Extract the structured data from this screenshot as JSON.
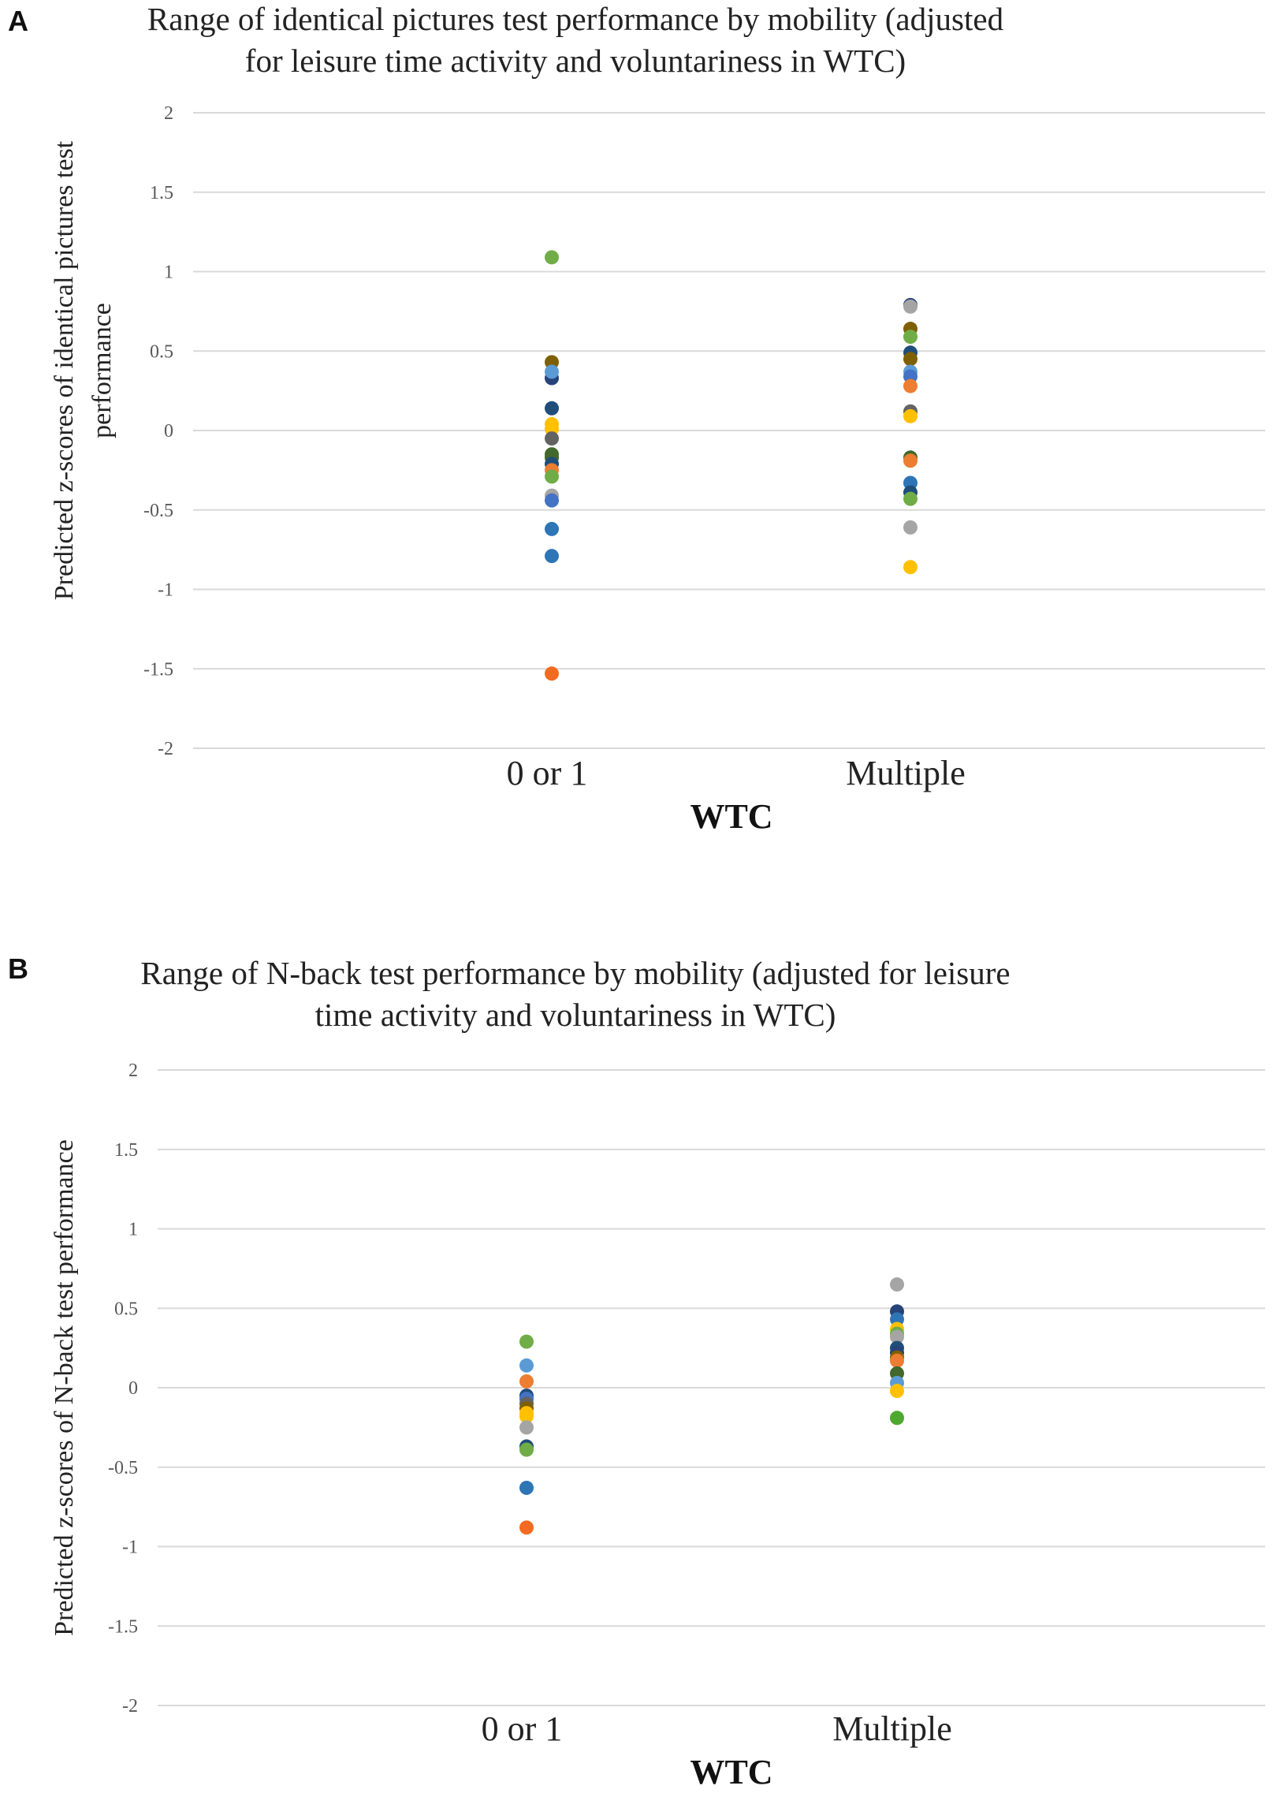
{
  "colors": {
    "blue": "#4472C4",
    "orange": "#ED7D31",
    "gray": "#A5A5A5",
    "gold": "#FFC000",
    "lightblue": "#5B9BD5",
    "green": "#70AD47",
    "darkblue": "#264478",
    "brown": "#7F6000",
    "darkgray": "#636363",
    "darkgreen": "#43682B",
    "medblue": "#2E75B6",
    "deepblue": "#1F4E79",
    "midgreen": "#4EA72E",
    "brightorange": "#F26B21"
  },
  "chart_data": [
    {
      "panel": "A",
      "type": "scatter",
      "title": [
        "Range of identical pictures test performance by mobility (adjusted",
        "for leisure time activity and voluntariness in WTC)"
      ],
      "xlabel": "WTC",
      "ylabel": [
        "Predicted z-scores of identical pictures test",
        "performance"
      ],
      "categories": [
        "0 or 1",
        "Multiple"
      ],
      "ylim": [
        -2,
        2
      ],
      "yticks": [
        {
          "value": 2,
          "label": "2"
        },
        {
          "value": 1.5,
          "label": "1.5"
        },
        {
          "value": 1,
          "label": "1"
        },
        {
          "value": 0.5,
          "label": "0.5"
        },
        {
          "value": 0,
          "label": "0"
        },
        {
          "value": -0.5,
          "label": "-0.5"
        },
        {
          "value": -1,
          "label": "-1"
        },
        {
          "value": -1.5,
          "label": "-1.5"
        },
        {
          "value": -2,
          "label": "-2"
        }
      ],
      "grid": true,
      "points": [
        {
          "category": "0 or 1",
          "y": 1.09,
          "color": "green"
        },
        {
          "category": "0 or 1",
          "y": 0.43,
          "color": "brown"
        },
        {
          "category": "0 or 1",
          "y": 0.33,
          "color": "darkblue"
        },
        {
          "category": "0 or 1",
          "y": 0.37,
          "color": "lightblue"
        },
        {
          "category": "0 or 1",
          "y": 0.14,
          "color": "deepblue"
        },
        {
          "category": "0 or 1",
          "y": 0.04,
          "color": "gold"
        },
        {
          "category": "0 or 1",
          "y": 0.01,
          "color": "gold"
        },
        {
          "category": "0 or 1",
          "y": -0.05,
          "color": "darkgray"
        },
        {
          "category": "0 or 1",
          "y": -0.15,
          "color": "darkgreen"
        },
        {
          "category": "0 or 1",
          "y": -0.17,
          "color": "darkgreen"
        },
        {
          "category": "0 or 1",
          "y": -0.21,
          "color": "deepblue"
        },
        {
          "category": "0 or 1",
          "y": -0.25,
          "color": "orange"
        },
        {
          "category": "0 or 1",
          "y": -0.29,
          "color": "green"
        },
        {
          "category": "0 or 1",
          "y": -0.41,
          "color": "gray"
        },
        {
          "category": "0 or 1",
          "y": -0.44,
          "color": "blue"
        },
        {
          "category": "0 or 1",
          "y": -0.62,
          "color": "medblue"
        },
        {
          "category": "0 or 1",
          "y": -0.79,
          "color": "medblue"
        },
        {
          "category": "0 or 1",
          "y": -1.53,
          "color": "brightorange"
        },
        {
          "category": "Multiple",
          "y": 0.79,
          "color": "darkblue"
        },
        {
          "category": "Multiple",
          "y": 0.78,
          "color": "gray"
        },
        {
          "category": "Multiple",
          "y": 0.64,
          "color": "brown"
        },
        {
          "category": "Multiple",
          "y": 0.59,
          "color": "green"
        },
        {
          "category": "Multiple",
          "y": 0.49,
          "color": "deepblue"
        },
        {
          "category": "Multiple",
          "y": 0.45,
          "color": "brown"
        },
        {
          "category": "Multiple",
          "y": 0.37,
          "color": "lightblue"
        },
        {
          "category": "Multiple",
          "y": 0.34,
          "color": "blue"
        },
        {
          "category": "Multiple",
          "y": 0.28,
          "color": "orange"
        },
        {
          "category": "Multiple",
          "y": 0.12,
          "color": "darkgray"
        },
        {
          "category": "Multiple",
          "y": 0.09,
          "color": "gold"
        },
        {
          "category": "Multiple",
          "y": -0.17,
          "color": "darkgreen"
        },
        {
          "category": "Multiple",
          "y": -0.19,
          "color": "orange"
        },
        {
          "category": "Multiple",
          "y": -0.33,
          "color": "medblue"
        },
        {
          "category": "Multiple",
          "y": -0.39,
          "color": "deepblue"
        },
        {
          "category": "Multiple",
          "y": -0.43,
          "color": "green"
        },
        {
          "category": "Multiple",
          "y": -0.61,
          "color": "gray"
        },
        {
          "category": "Multiple",
          "y": -0.86,
          "color": "gold"
        }
      ]
    },
    {
      "panel": "B",
      "type": "scatter",
      "title": [
        "Range of N-back test performance by mobility (adjusted for leisure",
        "time activity and voluntariness in WTC)"
      ],
      "xlabel": "WTC",
      "ylabel": [
        "Predicted z-scores of N-back test performance"
      ],
      "categories": [
        "0 or 1",
        "Multiple"
      ],
      "ylim": [
        -2,
        2
      ],
      "yticks": [
        {
          "value": 2,
          "label": "2"
        },
        {
          "value": 1.5,
          "label": "1.5"
        },
        {
          "value": 1,
          "label": "1"
        },
        {
          "value": 0.5,
          "label": "0.5"
        },
        {
          "value": 0,
          "label": "0"
        },
        {
          "value": -0.5,
          "label": "-0.5"
        },
        {
          "value": -1,
          "label": "-1"
        },
        {
          "value": -1.5,
          "label": "-1.5"
        },
        {
          "value": -2,
          "label": "-2"
        }
      ],
      "grid": true,
      "points": [
        {
          "category": "0 or 1",
          "y": 0.29,
          "color": "green"
        },
        {
          "category": "0 or 1",
          "y": 0.14,
          "color": "lightblue"
        },
        {
          "category": "0 or 1",
          "y": 0.04,
          "color": "orange"
        },
        {
          "category": "0 or 1",
          "y": -0.05,
          "color": "deepblue"
        },
        {
          "category": "0 or 1",
          "y": -0.07,
          "color": "blue"
        },
        {
          "category": "0 or 1",
          "y": -0.1,
          "color": "darkgray"
        },
        {
          "category": "0 or 1",
          "y": -0.13,
          "color": "brown"
        },
        {
          "category": "0 or 1",
          "y": -0.16,
          "color": "gold"
        },
        {
          "category": "0 or 1",
          "y": -0.18,
          "color": "gold"
        },
        {
          "category": "0 or 1",
          "y": -0.25,
          "color": "gray"
        },
        {
          "category": "0 or 1",
          "y": -0.37,
          "color": "deepblue"
        },
        {
          "category": "0 or 1",
          "y": -0.39,
          "color": "green"
        },
        {
          "category": "0 or 1",
          "y": -0.63,
          "color": "medblue"
        },
        {
          "category": "0 or 1",
          "y": -0.88,
          "color": "brightorange"
        },
        {
          "category": "Multiple",
          "y": 0.65,
          "color": "gray"
        },
        {
          "category": "Multiple",
          "y": 0.48,
          "color": "darkblue"
        },
        {
          "category": "Multiple",
          "y": 0.43,
          "color": "medblue"
        },
        {
          "category": "Multiple",
          "y": 0.37,
          "color": "gold"
        },
        {
          "category": "Multiple",
          "y": 0.34,
          "color": "green"
        },
        {
          "category": "Multiple",
          "y": 0.32,
          "color": "gray"
        },
        {
          "category": "Multiple",
          "y": 0.25,
          "color": "deepblue"
        },
        {
          "category": "Multiple",
          "y": 0.22,
          "color": "darkblue"
        },
        {
          "category": "Multiple",
          "y": 0.19,
          "color": "brown"
        },
        {
          "category": "Multiple",
          "y": 0.17,
          "color": "orange"
        },
        {
          "category": "Multiple",
          "y": 0.09,
          "color": "darkgreen"
        },
        {
          "category": "Multiple",
          "y": 0.03,
          "color": "lightblue"
        },
        {
          "category": "Multiple",
          "y": -0.02,
          "color": "gold"
        },
        {
          "category": "Multiple",
          "y": -0.19,
          "color": "midgreen"
        }
      ]
    }
  ]
}
